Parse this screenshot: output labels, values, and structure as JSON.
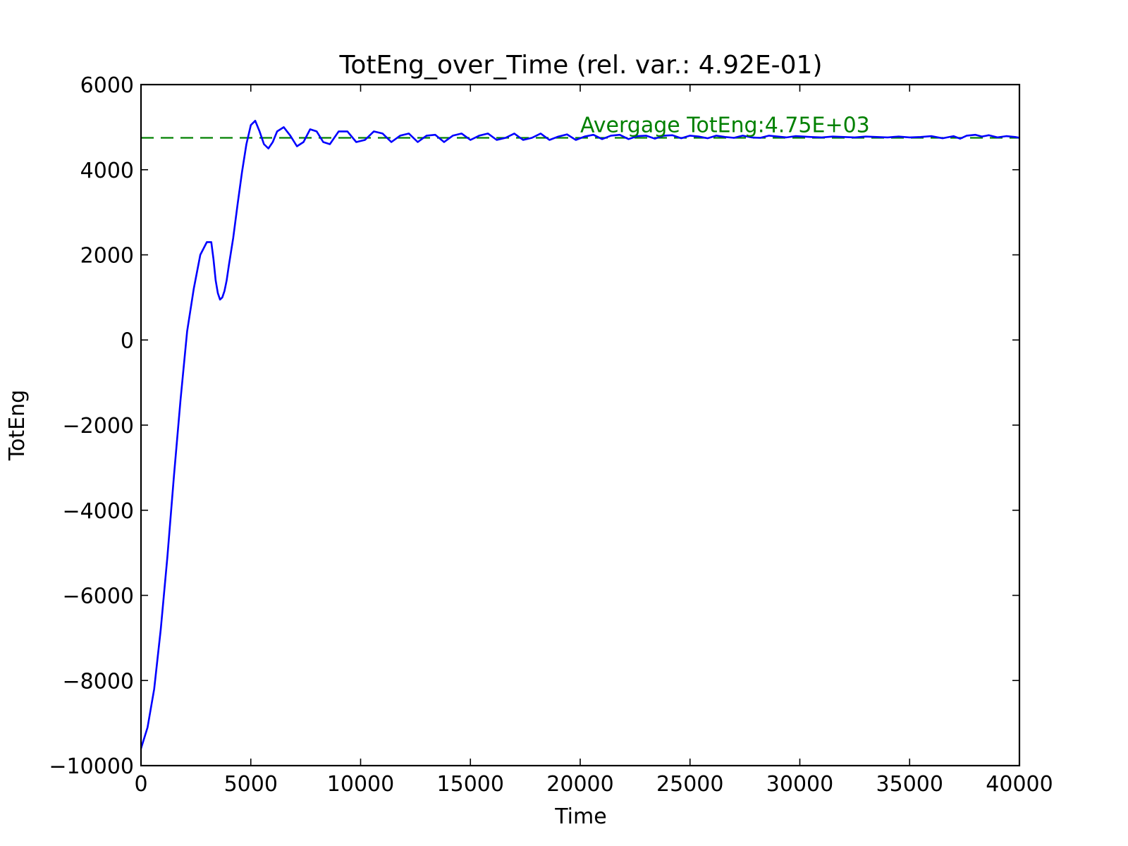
{
  "chart_data": {
    "type": "line",
    "title": "TotEng_over_Time (rel. var.: 4.92E-01)",
    "xlabel": "Time",
    "ylabel": "TotEng",
    "xlim": [
      0,
      40000
    ],
    "ylim": [
      -10000,
      6000
    ],
    "x_ticks": [
      0,
      5000,
      10000,
      15000,
      20000,
      25000,
      30000,
      35000,
      40000
    ],
    "y_ticks": [
      -10000,
      -8000,
      -6000,
      -4000,
      -2000,
      0,
      2000,
      4000,
      6000
    ],
    "x_tick_labels": [
      "0",
      "5000",
      "10000",
      "15000",
      "20000",
      "25000",
      "30000",
      "35000",
      "40000"
    ],
    "y_tick_labels": [
      "−10000",
      "−8000",
      "−6000",
      "−4000",
      "−2000",
      "0",
      "2000",
      "4000",
      "6000"
    ],
    "grid": false,
    "series": [
      {
        "color": "#0000ff",
        "x": [
          0,
          300,
          600,
          900,
          1200,
          1500,
          1800,
          2100,
          2400,
          2700,
          3000,
          3200,
          3300,
          3400,
          3500,
          3600,
          3700,
          3800,
          3900,
          4000,
          4200,
          4400,
          4600,
          4800,
          5000,
          5200,
          5400,
          5600,
          5800,
          6000,
          6200,
          6500,
          6800,
          7100,
          7400,
          7700,
          8000,
          8300,
          8600,
          9000,
          9400,
          9800,
          10200,
          10600,
          11000,
          11400,
          11800,
          12200,
          12600,
          13000,
          13400,
          13800,
          14200,
          14600,
          15000,
          15400,
          15800,
          16200,
          16600,
          17000,
          17400,
          17800,
          18200,
          18600,
          19000,
          19400,
          19800,
          20200,
          20600,
          21000,
          21400,
          21800,
          22200,
          22600,
          23000,
          23400,
          23800,
          24200,
          24600,
          25000,
          25400,
          25800,
          26200,
          26600,
          27000,
          27400,
          27800,
          28200,
          28600,
          29000,
          29400,
          29800,
          30500,
          31000,
          31500,
          32000,
          32500,
          33000,
          33500,
          34000,
          34500,
          35000,
          35500,
          36000,
          36500,
          37000,
          37300,
          37600,
          38000,
          38300,
          38600,
          39000,
          39400,
          39800,
          40000
        ],
        "y": [
          -9600,
          -9100,
          -8200,
          -6800,
          -5100,
          -3200,
          -1400,
          200,
          1200,
          2000,
          2300,
          2300,
          1900,
          1400,
          1100,
          950,
          1000,
          1150,
          1400,
          1750,
          2400,
          3200,
          3950,
          4600,
          5050,
          5150,
          4900,
          4600,
          4500,
          4650,
          4900,
          5000,
          4800,
          4550,
          4650,
          4950,
          4900,
          4650,
          4600,
          4900,
          4900,
          4650,
          4700,
          4900,
          4850,
          4650,
          4800,
          4850,
          4650,
          4800,
          4820,
          4650,
          4800,
          4850,
          4700,
          4800,
          4850,
          4700,
          4750,
          4850,
          4700,
          4750,
          4850,
          4700,
          4780,
          4830,
          4700,
          4780,
          4820,
          4720,
          4800,
          4820,
          4720,
          4790,
          4800,
          4730,
          4800,
          4810,
          4740,
          4800,
          4780,
          4740,
          4800,
          4770,
          4750,
          4800,
          4760,
          4750,
          4800,
          4780,
          4760,
          4790,
          4770,
          4760,
          4780,
          4770,
          4760,
          4780,
          4770,
          4760,
          4780,
          4760,
          4770,
          4790,
          4740,
          4790,
          4730,
          4800,
          4820,
          4780,
          4810,
          4760,
          4790,
          4770,
          4750
        ]
      }
    ],
    "reference_line": {
      "y": 4750,
      "color": "#008000",
      "style": "dashed",
      "label": "Avergage TotEng:4.75E+03",
      "label_x": 20000
    }
  }
}
